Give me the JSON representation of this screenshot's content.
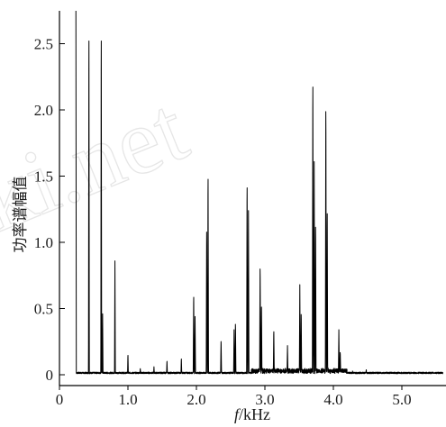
{
  "watermark": "ki.net",
  "chart_data": {
    "type": "line",
    "title": "",
    "xlabel_italic": "f",
    "xlabel_rest": "/kHz",
    "ylabel": "功率谱幅值",
    "xlim": [
      0,
      5.6
    ],
    "ylim": [
      -0.05,
      2.75
    ],
    "grid": false,
    "legend": "none",
    "x_ticks": [
      0,
      1.0,
      2.0,
      3.0,
      4.0,
      5.0
    ],
    "x_tick_labels": [
      "0",
      "1.0",
      "2.0",
      "3.0",
      "4.0",
      "5.0"
    ],
    "y_ticks": [
      0,
      0.5,
      1.0,
      1.5,
      2.0,
      2.5
    ],
    "y_tick_labels": [
      "0",
      "0.5",
      "1.0",
      "1.5",
      "2.0",
      "2.5"
    ],
    "line_color": "#000000",
    "peaks": [
      {
        "f": 0.24,
        "amp": 2.75,
        "width": 0.006
      },
      {
        "f": 0.43,
        "amp": 2.75,
        "width": 0.006
      },
      {
        "f": 0.61,
        "amp": 2.75,
        "width": 0.006
      },
      {
        "f": 0.63,
        "amp": 0.46,
        "width": 0.006
      },
      {
        "f": 0.81,
        "amp": 0.86,
        "width": 0.006
      },
      {
        "f": 1.0,
        "amp": 0.16,
        "width": 0.006
      },
      {
        "f": 1.18,
        "amp": 0.05,
        "width": 0.006
      },
      {
        "f": 1.38,
        "amp": 0.06,
        "width": 0.006
      },
      {
        "f": 1.57,
        "amp": 0.11,
        "width": 0.006
      },
      {
        "f": 1.78,
        "amp": 0.13,
        "width": 0.006
      },
      {
        "f": 1.96,
        "amp": 0.63,
        "width": 0.007
      },
      {
        "f": 1.98,
        "amp": 0.44,
        "width": 0.007
      },
      {
        "f": 2.15,
        "amp": 1.16,
        "width": 0.007
      },
      {
        "f": 2.17,
        "amp": 1.59,
        "width": 0.007
      },
      {
        "f": 2.36,
        "amp": 0.27,
        "width": 0.007
      },
      {
        "f": 2.55,
        "amp": 0.34,
        "width": 0.007
      },
      {
        "f": 2.57,
        "amp": 0.41,
        "width": 0.007
      },
      {
        "f": 2.74,
        "amp": 1.52,
        "width": 0.007
      },
      {
        "f": 2.76,
        "amp": 1.24,
        "width": 0.007
      },
      {
        "f": 2.93,
        "amp": 0.86,
        "width": 0.007
      },
      {
        "f": 2.95,
        "amp": 0.55,
        "width": 0.007
      },
      {
        "f": 3.13,
        "amp": 0.35,
        "width": 0.007
      },
      {
        "f": 3.33,
        "amp": 0.22,
        "width": 0.007
      },
      {
        "f": 3.51,
        "amp": 0.68,
        "width": 0.007
      },
      {
        "f": 3.53,
        "amp": 0.49,
        "width": 0.007
      },
      {
        "f": 3.7,
        "amp": 2.34,
        "width": 0.007
      },
      {
        "f": 3.72,
        "amp": 1.61,
        "width": 0.007
      },
      {
        "f": 3.74,
        "amp": 1.2,
        "width": 0.007
      },
      {
        "f": 3.89,
        "amp": 2.14,
        "width": 0.007
      },
      {
        "f": 3.91,
        "amp": 1.31,
        "width": 0.007
      },
      {
        "f": 4.08,
        "amp": 0.34,
        "width": 0.007
      },
      {
        "f": 4.1,
        "amp": 0.18,
        "width": 0.007
      },
      {
        "f": 4.28,
        "amp": 0.03,
        "width": 0.007
      },
      {
        "f": 4.48,
        "amp": 0.04,
        "width": 0.007
      },
      {
        "f": 4.68,
        "amp": 0.01,
        "width": 0.007
      }
    ]
  }
}
